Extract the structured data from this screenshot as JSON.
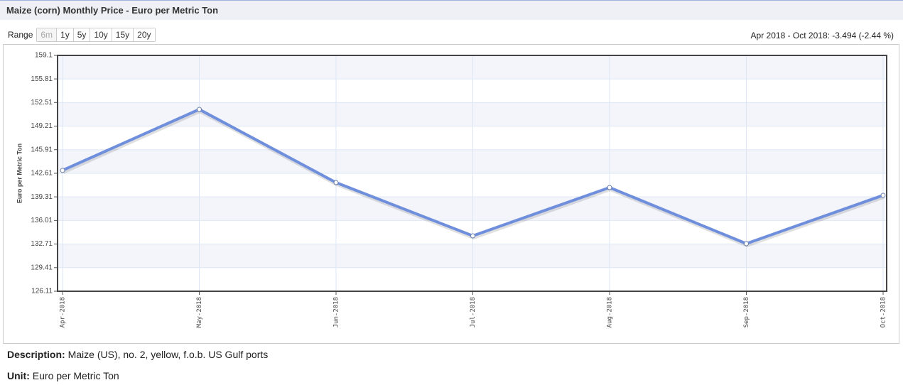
{
  "header": {
    "title": "Maize (corn) Monthly Price - Euro per Metric Ton"
  },
  "range": {
    "label": "Range",
    "buttons": [
      "6m",
      "1y",
      "5y",
      "10y",
      "15y",
      "20y"
    ],
    "summary": "Apr 2018 - Oct 2018: -3.494 (-2.44 %)"
  },
  "chart_data": {
    "type": "line",
    "y_label": "Euro per Metric Ton",
    "categories": [
      "Apr-2018",
      "May-2018",
      "Jun-2018",
      "Jul-2018",
      "Aug-2018",
      "Sep-2018",
      "Oct-2018"
    ],
    "values": [
      143.02,
      151.55,
      141.31,
      133.86,
      140.62,
      132.77,
      139.53
    ],
    "color": "#6f8fdd",
    "ylim": [
      126.11,
      159.1
    ],
    "yticks": [
      126.11,
      129.41,
      132.71,
      136.01,
      139.31,
      142.61,
      145.91,
      149.21,
      152.51,
      155.81,
      159.1
    ],
    "grid": true
  },
  "description": {
    "label": "Description:",
    "text": "Maize (US), no. 2, yellow, f.o.b. US Gulf ports"
  },
  "unit": {
    "label": "Unit:",
    "text": "Euro per Metric Ton"
  }
}
